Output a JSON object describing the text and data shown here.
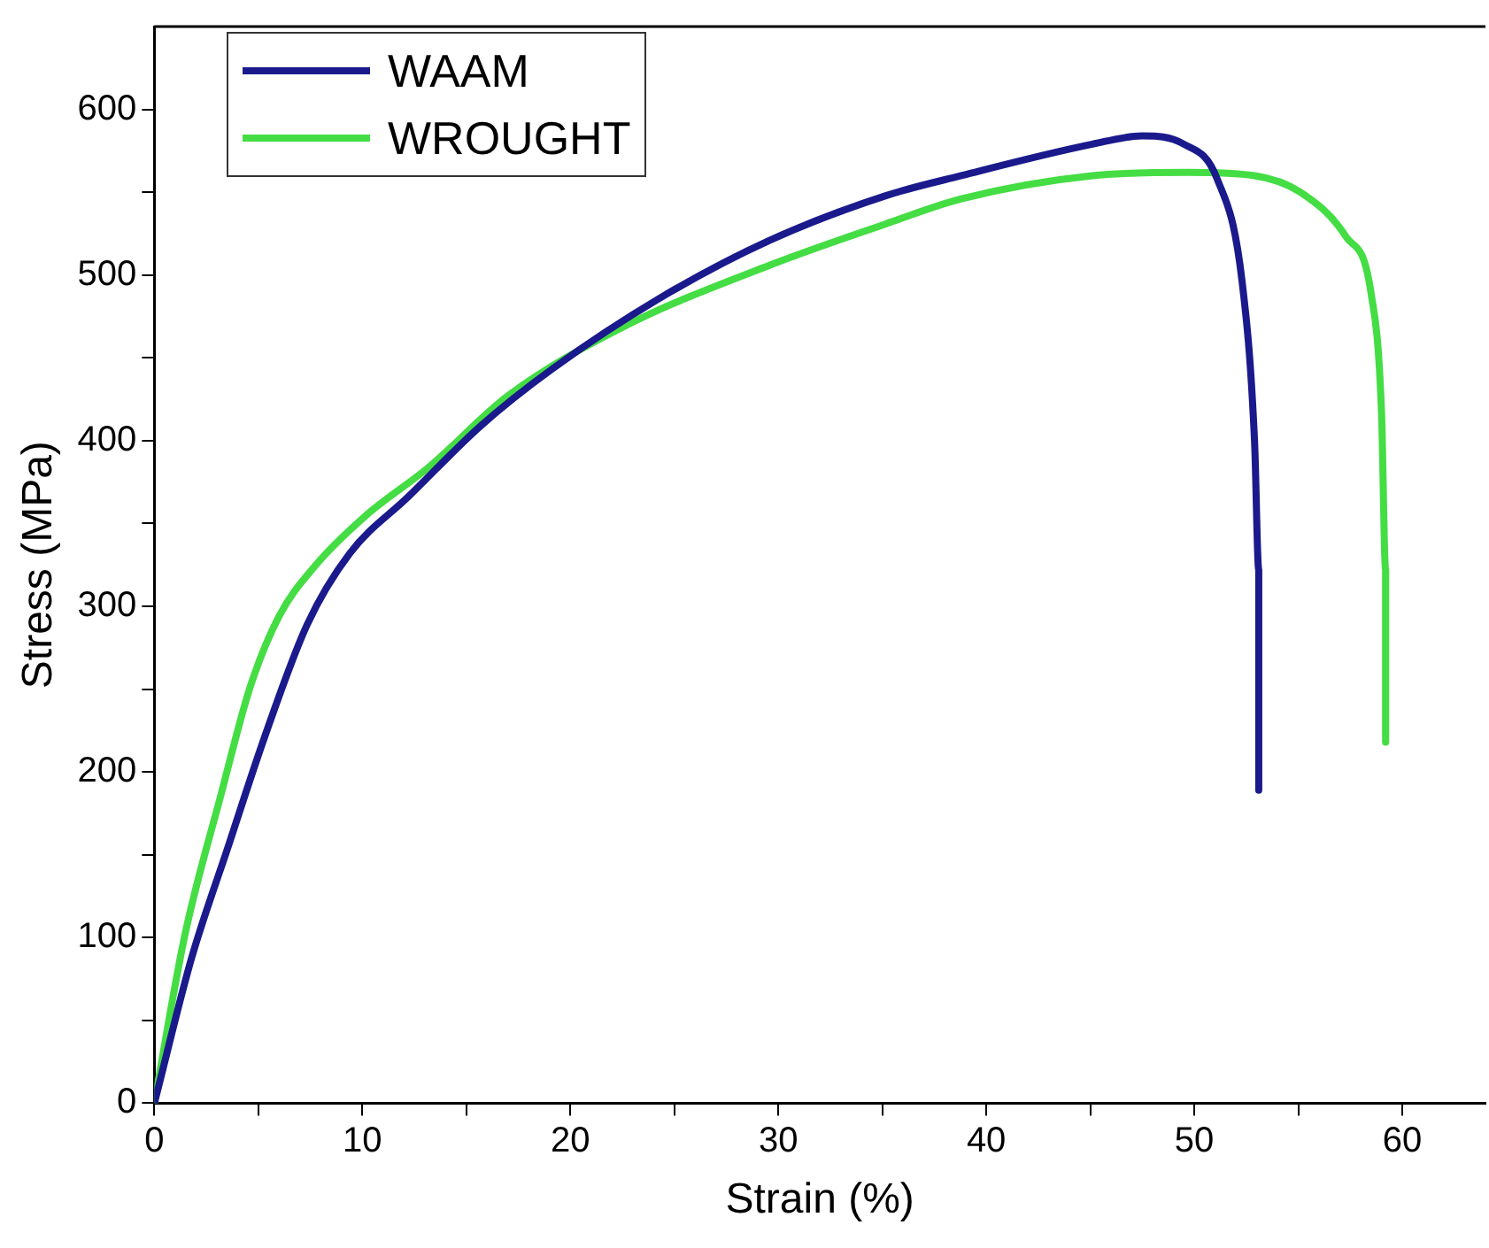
{
  "chart_data": {
    "type": "line",
    "xlabel": "Strain (%)",
    "ylabel": "Stress (MPa)",
    "xlim": [
      0,
      64
    ],
    "ylim": [
      0,
      650
    ],
    "xticks": [
      0,
      {
        "value": 5,
        "label": null
      },
      10,
      {
        "value": 15,
        "label": null
      },
      20,
      {
        "value": 25,
        "label": null
      },
      30,
      {
        "value": 35,
        "label": null
      },
      40,
      {
        "value": 45,
        "label": null
      },
      50,
      {
        "value": 55,
        "label": null
      },
      60
    ],
    "yticks": [
      0,
      {
        "value": 50,
        "label": null
      },
      100,
      {
        "value": 150,
        "label": null
      },
      200,
      {
        "value": 250,
        "label": null
      },
      300,
      {
        "value": 350,
        "label": null
      },
      400,
      {
        "value": 450,
        "label": null
      },
      500,
      {
        "value": 550,
        "label": null
      },
      600
    ],
    "grid": false,
    "legend": "top left",
    "marker": "none",
    "line_style": "solid",
    "series": [
      {
        "name": "WAAM",
        "color": "#1a1a8c",
        "x": [
          0,
          1.8,
          3.5,
          5.3,
          7.35,
          9.4,
          12.2,
          15.7,
          19.1,
          24.3,
          29.6,
          35.2,
          38.8,
          45.1,
          47.5,
          49.5,
          51.1,
          52.3,
          52.9,
          53.1,
          53.1
        ],
        "values": [
          0,
          88,
          153,
          221,
          289,
          332,
          366,
          409,
          443,
          486,
          521,
          548,
          560,
          579,
          584,
          579,
          558,
          496,
          399,
          322,
          189
        ]
      },
      {
        "name": "WROUGHT",
        "color": "#44dd44",
        "x": [
          0,
          1.46,
          3.2,
          4.6,
          6.0,
          7.7,
          10.1,
          13.2,
          17.0,
          22.6,
          29.6,
          35.2,
          38.8,
          45.1,
          49.7,
          52.9,
          55.1,
          57.3,
          58.5,
          59.0,
          59.2,
          59.2
        ],
        "values": [
          0,
          101,
          186,
          251,
          294,
          324,
          354,
          384,
          427,
          469,
          506,
          531,
          546,
          560,
          562,
          560,
          550,
          523,
          489,
          418,
          322,
          218
        ]
      }
    ]
  }
}
